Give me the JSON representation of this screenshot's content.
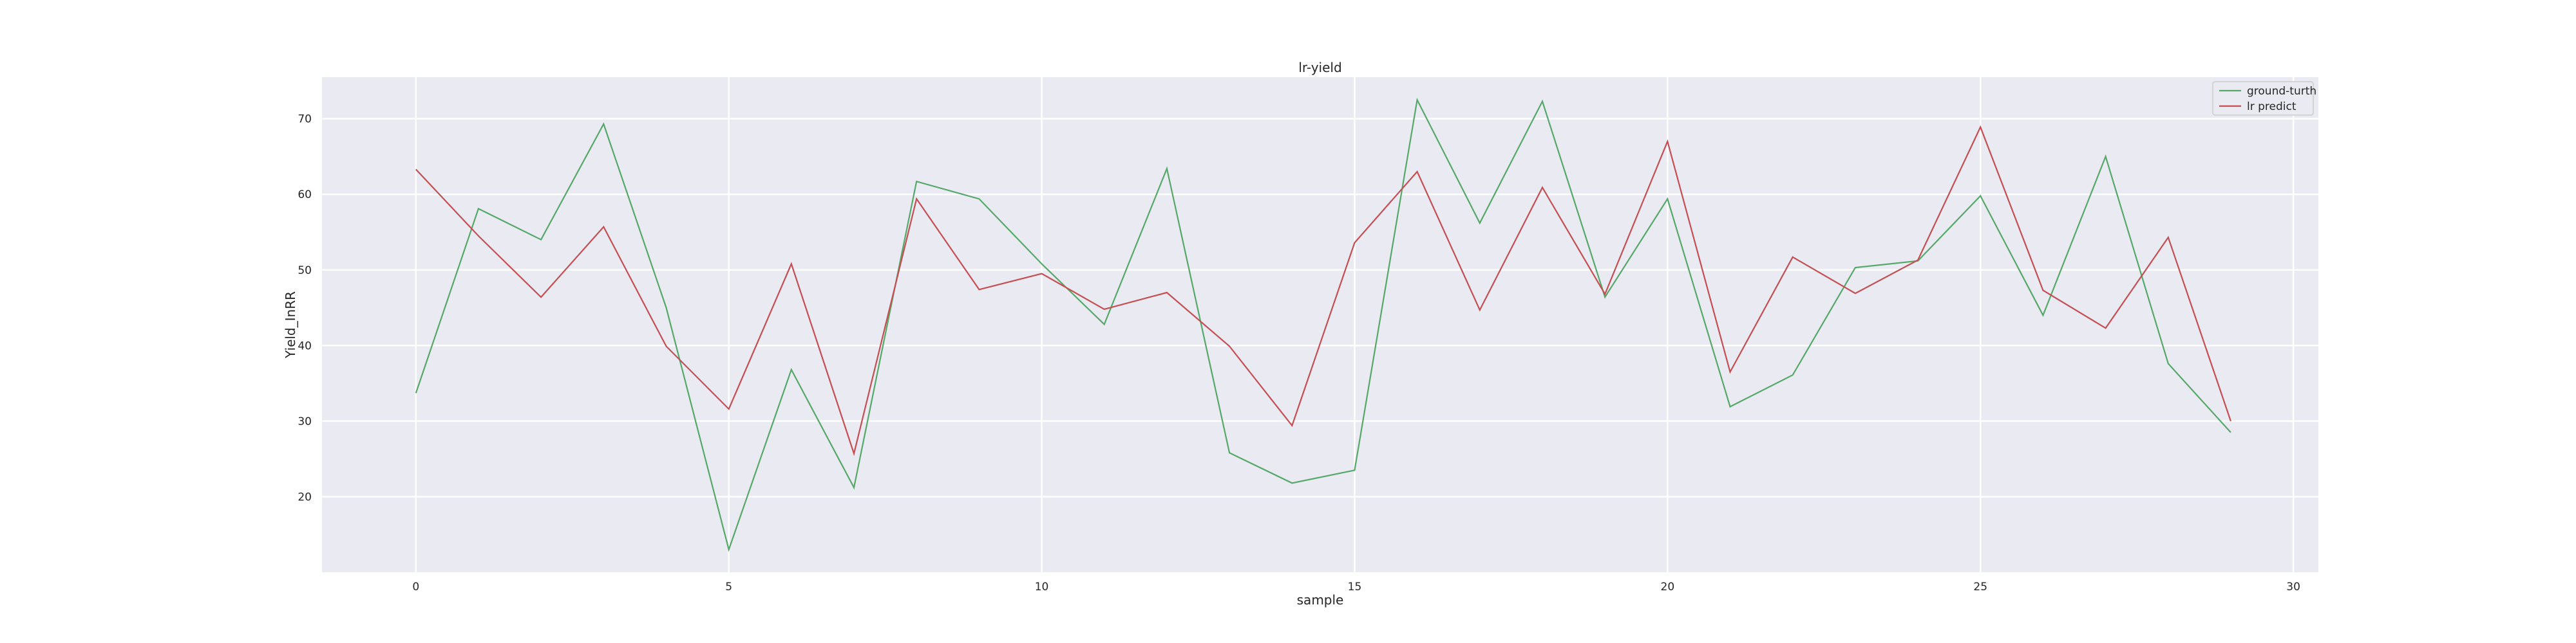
{
  "chart_data": {
    "type": "line",
    "title": "lr-yield",
    "xlabel": "sample",
    "ylabel": "Yield_InRR",
    "xlim": [
      -1.5,
      30.4
    ],
    "ylim": [
      10,
      75.5
    ],
    "xticks": [
      0,
      5,
      10,
      15,
      20,
      25,
      30
    ],
    "yticks": [
      20,
      30,
      40,
      50,
      60,
      70
    ],
    "grid": true,
    "legend_position": "top-right",
    "x": [
      0,
      1,
      2,
      3,
      4,
      5,
      6,
      7,
      8,
      9,
      10,
      11,
      12,
      13,
      14,
      15,
      16,
      17,
      18,
      19,
      20,
      21,
      22,
      23,
      24,
      25,
      26,
      27,
      28,
      29
    ],
    "series": [
      {
        "name": "ground-turth",
        "color": "#55a868",
        "values": [
          33.7,
          58.1,
          54.0,
          69.3,
          45.0,
          13.0,
          36.8,
          21.2,
          61.7,
          59.4,
          50.8,
          42.8,
          63.4,
          25.8,
          21.8,
          23.5,
          72.5,
          56.2,
          72.3,
          46.4,
          59.4,
          31.9,
          36.1,
          50.3,
          51.2,
          59.8,
          44.0,
          65.0,
          37.6,
          28.5
        ]
      },
      {
        "name": "lr predict",
        "color": "#c44e52",
        "values": [
          63.3,
          54.5,
          46.4,
          55.7,
          39.9,
          31.6,
          50.8,
          25.7,
          59.4,
          47.4,
          49.5,
          44.8,
          47.0,
          39.9,
          29.4,
          53.6,
          63.0,
          44.7,
          60.9,
          46.8,
          67.0,
          36.5,
          51.7,
          46.9,
          51.3,
          68.9,
          47.3,
          42.3,
          54.3,
          30.0
        ]
      }
    ]
  }
}
